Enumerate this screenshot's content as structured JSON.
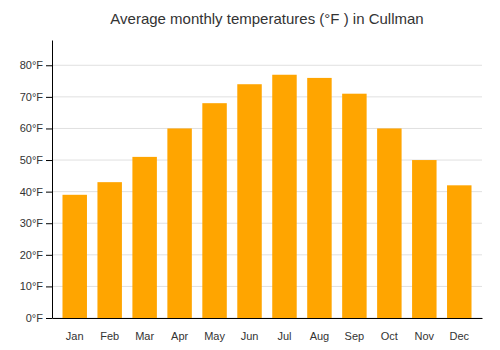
{
  "chart_data": {
    "type": "bar",
    "title": "Average monthly temperatures (°F ) in Cullman",
    "categories": [
      "Jan",
      "Feb",
      "Mar",
      "Apr",
      "May",
      "Jun",
      "Jul",
      "Aug",
      "Sep",
      "Oct",
      "Nov",
      "Dec"
    ],
    "values": [
      39,
      43,
      51,
      60,
      68,
      74,
      77,
      76,
      71,
      60,
      50,
      42
    ],
    "color": "#FFA500",
    "ylim": [
      0,
      88
    ],
    "yticks": [
      {
        "value": 0,
        "label": "0°F"
      },
      {
        "value": 10,
        "label": "10°F"
      },
      {
        "value": 20,
        "label": "20°F"
      },
      {
        "value": 30,
        "label": "30°F"
      },
      {
        "value": 40,
        "label": "40°F"
      },
      {
        "value": 50,
        "label": "50°F"
      },
      {
        "value": 60,
        "label": "60°F"
      },
      {
        "value": 70,
        "label": "70°F"
      },
      {
        "value": 80,
        "label": "80°F"
      }
    ],
    "grid": true
  }
}
